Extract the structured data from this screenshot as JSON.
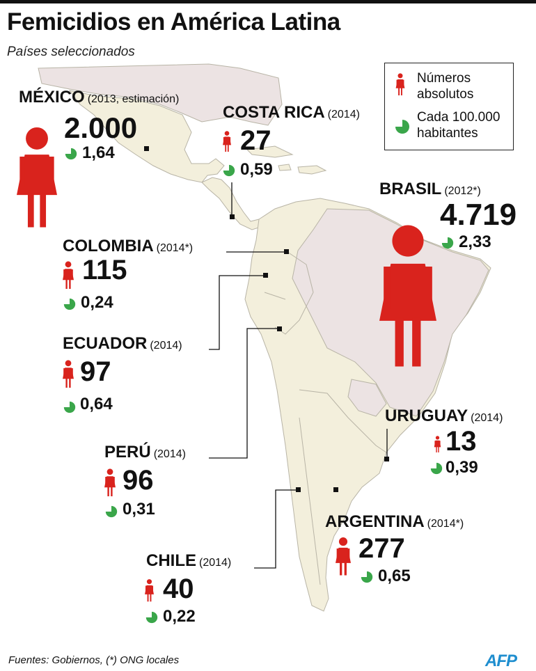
{
  "header": {
    "title": "Femicidios en América Latina",
    "subtitle": "Países seleccionados"
  },
  "legend": {
    "absolute_label": "Números absolutos",
    "rate_label": "Cada 100.000 habitantes"
  },
  "countries": {
    "mexico": {
      "name": "MÉXICO",
      "year": "(2013, estimación)",
      "absolute": "2.000",
      "rate": "1,64"
    },
    "costa_rica": {
      "name": "COSTA RICA",
      "year": "(2014)",
      "absolute": "27",
      "rate": "0,59"
    },
    "brasil": {
      "name": "BRASIL",
      "year": "(2012*)",
      "absolute": "4.719",
      "rate": "2,33"
    },
    "colombia": {
      "name": "COLOMBIA",
      "year": "(2014*)",
      "absolute": "115",
      "rate": "0,24"
    },
    "ecuador": {
      "name": "ECUADOR",
      "year": "(2014)",
      "absolute": "97",
      "rate": "0,64"
    },
    "peru": {
      "name": "PERÚ",
      "year": "(2014)",
      "absolute": "96",
      "rate": "0,31"
    },
    "uruguay": {
      "name": "URUGUAY",
      "year": "(2014)",
      "absolute": "13",
      "rate": "0,39"
    },
    "argentina": {
      "name": "ARGENTINA",
      "year": "(2014*)",
      "absolute": "277",
      "rate": "0,65"
    },
    "chile": {
      "name": "CHILE",
      "year": "(2014)",
      "absolute": "40",
      "rate": "0,22"
    }
  },
  "footer": {
    "source": "Fuentes: Gobiernos, (*) ONG locales",
    "logo": "AFP"
  },
  "colors": {
    "figure_red": "#d9231d",
    "pie_green": "#3aa64a",
    "land": "#f3efdc",
    "land_other": "#ece3e3",
    "border": "#b8b4a6"
  }
}
